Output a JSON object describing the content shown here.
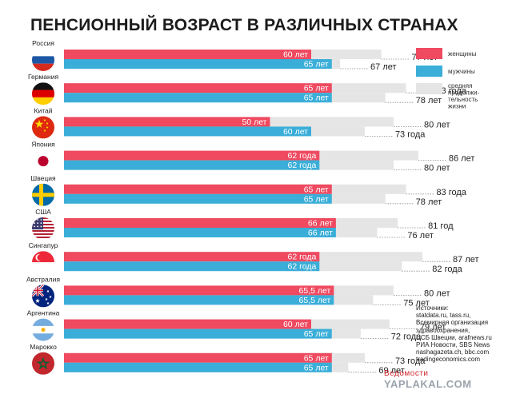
{
  "page": {
    "title": "ПЕНСИОННЫЙ ВОЗРАСТ В РАЗЛИЧНЫХ СТРАНАХ",
    "legend": {
      "women": "женщины",
      "men": "мужчины",
      "life_lines": [
        "средняя",
        "продолжи-",
        "тельность",
        "жизни"
      ]
    },
    "sources": {
      "lines": [
        "Источники:",
        "statdata.ru, tass.ru,",
        "Всемирная организация",
        "здравоохранения,",
        "ЦСБ Швеции, arafnews.ru",
        "РИА Новости, SBS News",
        "nashagazeta.ch, bbc.com",
        "tradingeconomics.com"
      ]
    },
    "watermark": "YAPLAKAL.COM",
    "watermark_brand": "Ведомости"
  },
  "colors": {
    "women": "#ef4a60",
    "men": "#3aaed8",
    "life": "#e5e5e5"
  },
  "chart_data": {
    "type": "bar",
    "orientation": "horizontal",
    "title": "ПЕНСИОННЫЙ ВОЗРАСТ В РАЗЛИЧНЫХ СТРАНАХ",
    "categories": [
      "Россия",
      "Германия",
      "Китай",
      "Япония",
      "Швеция",
      "США",
      "Сингапур",
      "Австралия",
      "Аргентина",
      "Марокко"
    ],
    "series": [
      {
        "name": "женщины",
        "key": "women_retire",
        "values": [
          60,
          65,
          50,
          62,
          65,
          66,
          62,
          65.5,
          60,
          65
        ],
        "labels": [
          "60 лет",
          "65 лет",
          "50 лет",
          "62 года",
          "65 лет",
          "66 лет",
          "62 года",
          "65,5 лет",
          "60 лет",
          "65 лет"
        ]
      },
      {
        "name": "мужчины",
        "key": "men_retire",
        "values": [
          65,
          65,
          60,
          62,
          65,
          66,
          62,
          65.5,
          65,
          65
        ],
        "labels": [
          "65 лет",
          "65 лет",
          "60 лет",
          "62 года",
          "65 лет",
          "66 лет",
          "62 года",
          "65,5 лет",
          "65 лет",
          "65 лет"
        ]
      },
      {
        "name": "средняя продолжительность жизни (женщины)",
        "key": "women_life",
        "values": [
          77,
          83,
          80,
          86,
          83,
          81,
          87,
          80,
          79,
          73
        ],
        "labels": [
          "77 лет",
          "83 года",
          "80 лет",
          "86 лет",
          "83 года",
          "81 год",
          "87 лет",
          "80 лет",
          "79 лет",
          "73 года"
        ]
      },
      {
        "name": "средняя продолжительность жизни (мужчины)",
        "key": "men_life",
        "values": [
          67,
          78,
          73,
          80,
          78,
          76,
          82,
          75,
          72,
          69
        ],
        "labels": [
          "67 лет",
          "78 лет",
          "73 года",
          "80 лет",
          "78 лет",
          "76 лет",
          "82 года",
          "75 лет",
          "72 года",
          "69 лет"
        ]
      }
    ],
    "flags": [
      "russia-flag-icon",
      "germany-flag-icon",
      "china-flag-icon",
      "japan-flag-icon",
      "sweden-flag-icon",
      "usa-flag-icon",
      "singapore-flag-icon",
      "australia-flag-icon",
      "argentina-flag-icon",
      "morocco-flag-icon"
    ],
    "legend_position": "right",
    "grid": false
  }
}
